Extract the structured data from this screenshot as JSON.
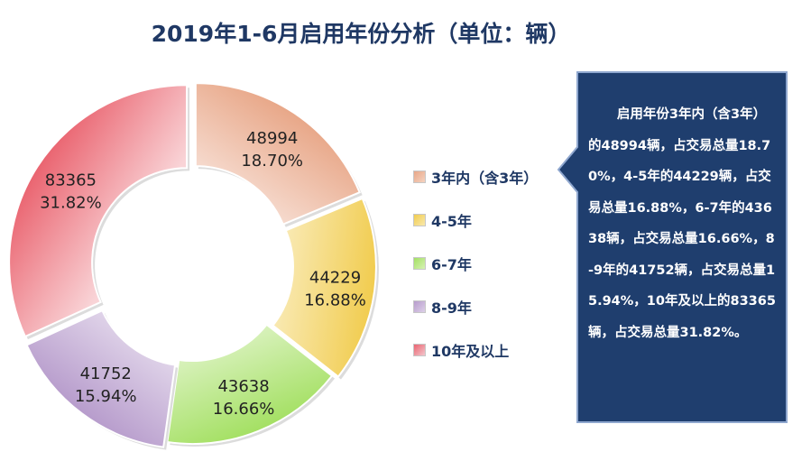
{
  "colors": {
    "title": "#1f3864",
    "callout_fill": "#1f3e6e",
    "callout_border": "#8fa7cf",
    "slice_3": "#e8a788",
    "slice_45": "#f1cc4e",
    "slice_67": "#a4e063",
    "slice_89": "#b79ccc",
    "slice_10": "#ea6470"
  },
  "chart_data": {
    "type": "pie",
    "title": "2019年1-6月启用年份分析（单位：辆）",
    "donut": true,
    "legend_position": "right",
    "slices": [
      {
        "label": "3年内（含3年）",
        "value": 48994,
        "percent": "18.70%",
        "color": "#e8a788",
        "exploded": true
      },
      {
        "label": "4-5年",
        "value": 44229,
        "percent": "16.88%",
        "color": "#f1cc4e",
        "exploded": true
      },
      {
        "label": "6-7年",
        "value": 43638,
        "percent": "16.66%",
        "color": "#a4e063",
        "exploded": false
      },
      {
        "label": "8-9年",
        "value": 41752,
        "percent": "15.94%",
        "color": "#b79ccc",
        "exploded": true
      },
      {
        "label": "10年及以上",
        "value": 83365,
        "percent": "31.82%",
        "color": "#ea6470",
        "exploded": true
      }
    ]
  },
  "callout": {
    "text": "启用年份3年内（含3年）的48994辆，占交易总量18.70%，4-5年的44229辆，占交易总量16.88%，6-7年的43638辆，占交易总量16.66%，8-9年的41752辆，占交易总量15.94%，10年及以上的83365辆，占交易总量31.82%。"
  }
}
